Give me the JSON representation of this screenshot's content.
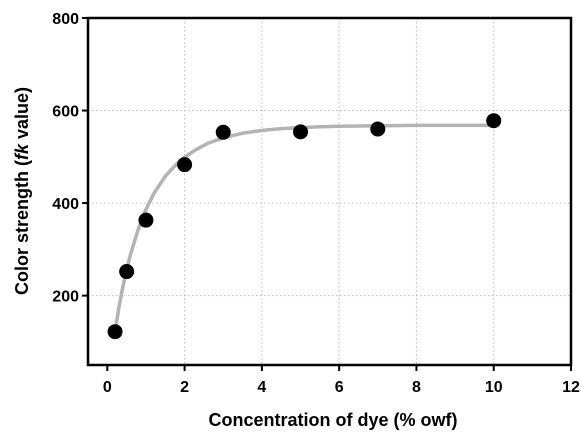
{
  "chart_data": {
    "type": "scatter",
    "title": "",
    "xlabel": "Concentration of dye (% owf)",
    "ylabel": {
      "prefix": "Color strength (",
      "italic": "fk",
      "suffix": " value)"
    },
    "xlim": [
      -0.5,
      12
    ],
    "ylim": [
      50,
      800
    ],
    "xticks": [
      0,
      2,
      4,
      6,
      8,
      10,
      12
    ],
    "yticks": [
      200,
      400,
      600,
      800
    ],
    "grid": true,
    "grid_style": "dotted",
    "legend": "none",
    "series": [
      {
        "kind": "points",
        "color": "#000000",
        "x": [
          0.2,
          0.5,
          1,
          2,
          3,
          5,
          7,
          10
        ],
        "y": [
          122,
          252,
          363,
          483,
          553,
          554,
          560,
          578
        ]
      },
      {
        "kind": "fit-curve",
        "color": "#b3b3b3",
        "x": [
          0.2,
          0.3,
          0.4,
          0.5,
          0.6,
          0.8,
          1.0,
          1.2,
          1.5,
          1.8,
          2.0,
          2.3,
          2.6,
          3.0,
          3.5,
          4.0,
          4.5,
          5.0,
          5.5,
          6.0,
          7.0,
          8.0,
          9.0,
          10.0
        ],
        "y": [
          122,
          174,
          218,
          255,
          289,
          343,
          386,
          420,
          458,
          485,
          499,
          516,
          529,
          541,
          551,
          557,
          561,
          563,
          565,
          566,
          567,
          568,
          568,
          568
        ]
      }
    ]
  }
}
